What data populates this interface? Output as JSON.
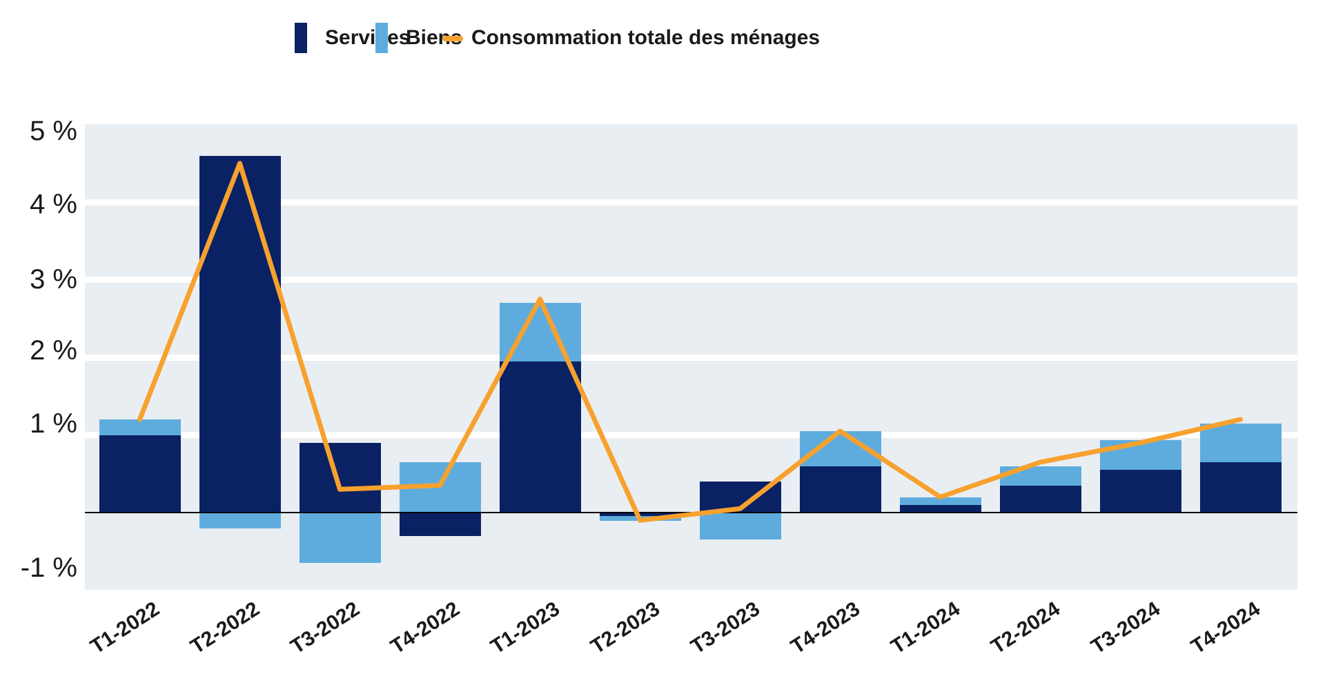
{
  "legend": {
    "items": [
      {
        "label": "Services"
      },
      {
        "label": "Biens"
      },
      {
        "label": "Consommation totale des ménages"
      }
    ]
  },
  "axis": {
    "y_ticks": [
      "5 %",
      "4 %",
      "3 %",
      "2 %",
      "1 %",
      "-1 %"
    ],
    "y_tick_values": [
      5,
      4,
      3,
      2,
      1,
      -1
    ]
  },
  "chart_data": {
    "type": "bar",
    "subtype": "stacked-bars-with-line-overlay",
    "categories": [
      "T1-2022",
      "T2-2022",
      "T3-2022",
      "T4-2022",
      "T1-2023",
      "T2-2023",
      "T3-2023",
      "T4-2023",
      "T1-2024",
      "T2-2024",
      "T3-2024",
      "T4-2024"
    ],
    "series": [
      {
        "name": "Services",
        "type": "bar",
        "color": "#0A2164",
        "values": [
          1.0,
          4.6,
          0.9,
          -0.3,
          1.95,
          -0.04,
          0.4,
          0.6,
          0.1,
          0.35,
          0.55,
          0.65
        ]
      },
      {
        "name": "Biens",
        "type": "bar",
        "color": "#5EACDE",
        "values": [
          0.2,
          -0.2,
          -0.65,
          0.65,
          0.75,
          -0.07,
          -0.35,
          0.45,
          0.1,
          0.25,
          0.38,
          0.5
        ]
      },
      {
        "name": "Consommation totale des ménages",
        "type": "line",
        "color": "#F7A12E",
        "values": [
          1.2,
          4.5,
          0.3,
          0.35,
          2.75,
          -0.1,
          0.05,
          1.05,
          0.2,
          0.65,
          0.9,
          1.2
        ]
      }
    ],
    "title": "",
    "xlabel": "",
    "ylabel": "",
    "ylim": [
      -1,
      5
    ],
    "grid": true,
    "legend_position": "top",
    "plot_background": "#E9EEF2",
    "gridline_color": "#FFFFFF",
    "baseline_color": "#000000",
    "text_color": "#1A1A1A"
  }
}
